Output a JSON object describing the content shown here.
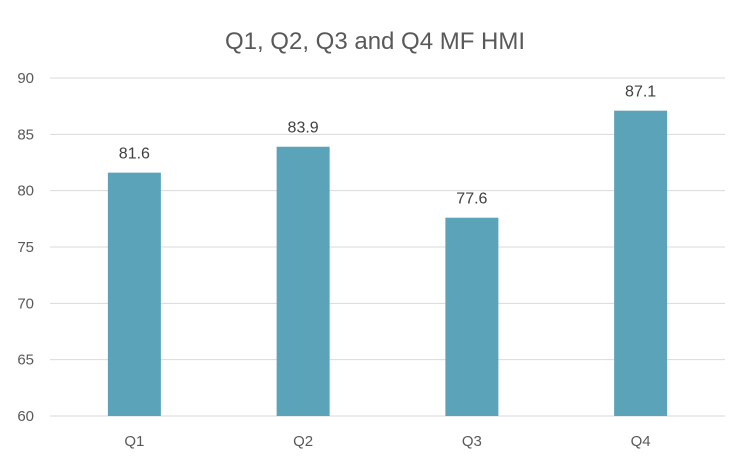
{
  "chart_data": {
    "type": "bar",
    "title": "Q1, Q2, Q3 and Q4 MF HMI",
    "xlabel": "",
    "ylabel": "",
    "categories": [
      "Q1",
      "Q2",
      "Q3",
      "Q4"
    ],
    "values": [
      81.6,
      83.9,
      77.6,
      87.1
    ],
    "value_labels": [
      "81.6",
      "83.9",
      "77.6",
      "87.1"
    ],
    "ylim": [
      60,
      90
    ],
    "yticks": [
      60,
      65,
      70,
      75,
      80,
      85,
      90
    ],
    "grid": true,
    "legend": "none",
    "colors": {
      "bar": "#5BA3B9",
      "grid": "#D9D9D9",
      "text": "#595959",
      "label": "#404040"
    }
  }
}
